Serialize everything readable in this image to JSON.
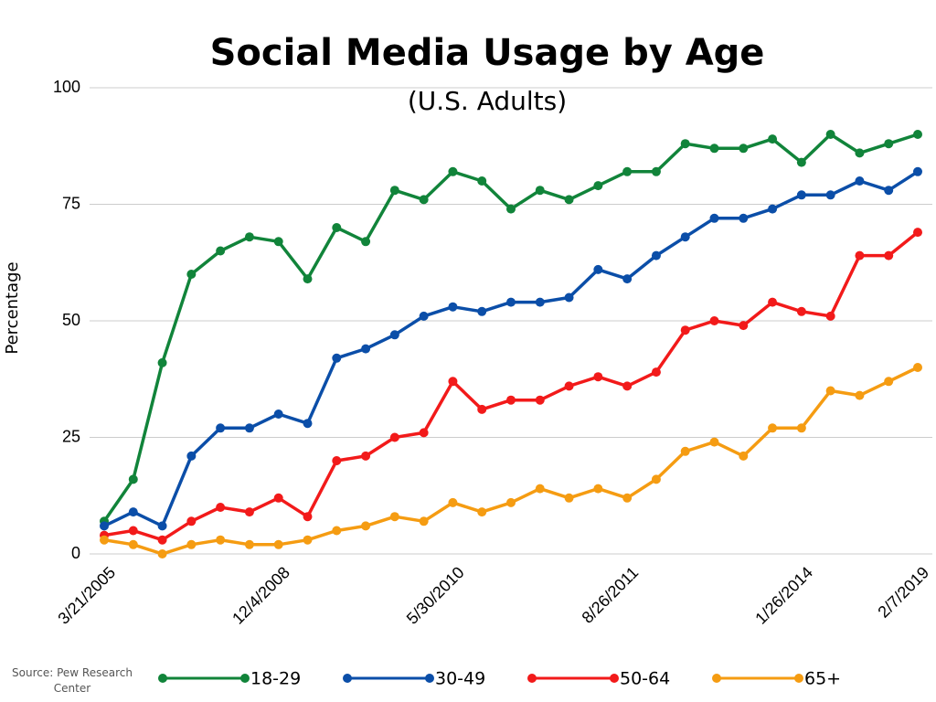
{
  "chart_data": {
    "type": "line",
    "title": "Social Media Usage by Age",
    "subtitle": "(U.S. Adults)",
    "y_label": "Percentage",
    "source": "Source: Pew Research Center",
    "categories": [
      "3/21/2005",
      null,
      null,
      null,
      null,
      null,
      "12/4/2008",
      null,
      null,
      null,
      null,
      null,
      "5/30/2010",
      null,
      null,
      null,
      null,
      null,
      "8/26/2011",
      null,
      null,
      null,
      null,
      null,
      "1/26/2014",
      null,
      null,
      null,
      "2/7/2019"
    ],
    "series": [
      {
        "name": "18-29",
        "color": "#11843a",
        "values": [
          7,
          16,
          41,
          60,
          65,
          68,
          67,
          59,
          70,
          67,
          78,
          76,
          82,
          80,
          74,
          78,
          76,
          79,
          82,
          82,
          88,
          87,
          87,
          89,
          84,
          90,
          86,
          88,
          90
        ]
      },
      {
        "name": "30-49",
        "color": "#0b4ea8",
        "values": [
          6,
          9,
          6,
          21,
          27,
          27,
          30,
          28,
          42,
          44,
          47,
          51,
          53,
          52,
          54,
          54,
          55,
          61,
          59,
          64,
          68,
          72,
          72,
          74,
          77,
          77,
          80,
          78,
          82
        ]
      },
      {
        "name": "50-64",
        "color": "#f21a1a",
        "values": [
          4,
          5,
          3,
          7,
          10,
          9,
          12,
          8,
          20,
          21,
          25,
          26,
          37,
          31,
          33,
          33,
          36,
          38,
          36,
          39,
          48,
          50,
          49,
          54,
          52,
          51,
          64,
          64,
          69
        ]
      },
      {
        "name": "65+",
        "color": "#f59c12",
        "values": [
          3,
          2,
          0,
          2,
          3,
          2,
          2,
          3,
          5,
          6,
          8,
          7,
          11,
          9,
          11,
          14,
          12,
          14,
          12,
          16,
          22,
          24,
          21,
          27,
          27,
          35,
          34,
          37,
          40
        ]
      }
    ],
    "ylim": [
      0,
      100
    ],
    "yticks": [
      0,
      25,
      50,
      75,
      100
    ],
    "grid": true
  }
}
